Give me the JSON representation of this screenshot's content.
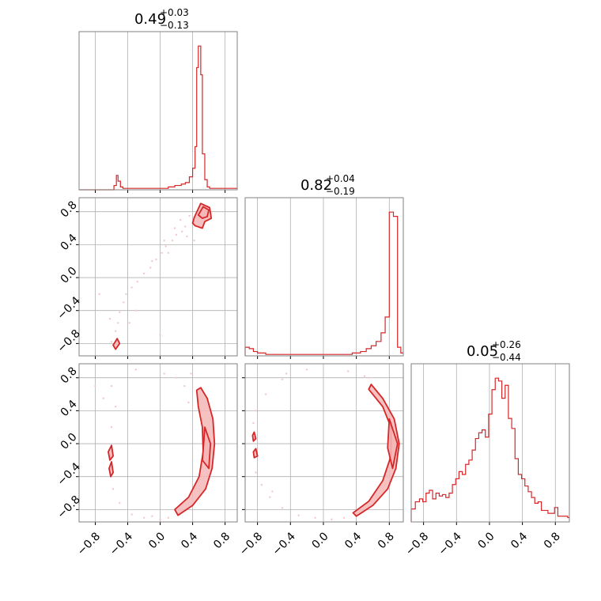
{
  "colors": {
    "series": "#d62728",
    "fill": "#f4b6b6",
    "grid": "#b0b0b0",
    "axes": "#808080",
    "scatter": "#f2c9c9"
  },
  "chart_data": [
    {
      "type": "histogram",
      "panel": "1,1",
      "title": {
        "median": "0.49",
        "plus": "+0.03",
        "minus": "−0.13"
      },
      "x_range": [
        -1,
        0.95
      ],
      "x_grid": [
        -0.8,
        -0.4,
        0.0,
        0.4,
        0.8
      ],
      "y_ticks_labeled": false,
      "bins": [
        {
          "x": -1.0,
          "count": 0
        },
        {
          "x": -0.86,
          "count": 0
        },
        {
          "x": -0.6,
          "count": 0
        },
        {
          "x": -0.57,
          "count": 3
        },
        {
          "x": -0.54,
          "count": 10
        },
        {
          "x": -0.52,
          "count": 6
        },
        {
          "x": -0.49,
          "count": 2
        },
        {
          "x": -0.46,
          "count": 1
        },
        {
          "x": -0.42,
          "count": 1
        },
        {
          "x": -0.3,
          "count": 1
        },
        {
          "x": -0.1,
          "count": 1
        },
        {
          "x": 0.1,
          "count": 2
        },
        {
          "x": 0.18,
          "count": 3
        },
        {
          "x": 0.26,
          "count": 4
        },
        {
          "x": 0.31,
          "count": 5
        },
        {
          "x": 0.36,
          "count": 9
        },
        {
          "x": 0.4,
          "count": 15
        },
        {
          "x": 0.43,
          "count": 30
        },
        {
          "x": 0.45,
          "count": 85
        },
        {
          "x": 0.47,
          "count": 100
        },
        {
          "x": 0.5,
          "count": 80
        },
        {
          "x": 0.52,
          "count": 25
        },
        {
          "x": 0.55,
          "count": 7
        },
        {
          "x": 0.58,
          "count": 2
        },
        {
          "x": 0.61,
          "count": 1
        },
        {
          "x": 0.95,
          "count": 1
        }
      ]
    },
    {
      "type": "histogram",
      "panel": "2,2",
      "title": {
        "median": "0.82",
        "plus": "+0.04",
        "minus": "−0.19"
      },
      "x_range": [
        -0.95,
        0.97
      ],
      "x_grid": [
        -0.8,
        -0.4,
        0.0,
        0.4,
        0.8
      ],
      "y_ticks_labeled": false,
      "bins": [
        {
          "x": -0.95,
          "count": 6
        },
        {
          "x": -0.9,
          "count": 5
        },
        {
          "x": -0.85,
          "count": 3
        },
        {
          "x": -0.8,
          "count": 2
        },
        {
          "x": -0.7,
          "count": 1
        },
        {
          "x": -0.55,
          "count": 1
        },
        {
          "x": -0.4,
          "count": 1
        },
        {
          "x": -0.2,
          "count": 1
        },
        {
          "x": 0.0,
          "count": 1
        },
        {
          "x": 0.2,
          "count": 1
        },
        {
          "x": 0.35,
          "count": 2
        },
        {
          "x": 0.45,
          "count": 3
        },
        {
          "x": 0.52,
          "count": 5
        },
        {
          "x": 0.58,
          "count": 7
        },
        {
          "x": 0.64,
          "count": 10
        },
        {
          "x": 0.7,
          "count": 16
        },
        {
          "x": 0.75,
          "count": 27
        },
        {
          "x": 0.8,
          "count": 100
        },
        {
          "x": 0.85,
          "count": 97
        },
        {
          "x": 0.9,
          "count": 6
        },
        {
          "x": 0.94,
          "count": 2
        }
      ]
    },
    {
      "type": "histogram",
      "panel": "3,3",
      "title": {
        "median": "0.05",
        "plus": "+0.26",
        "minus": "−0.44"
      },
      "x_range": [
        -0.95,
        0.97
      ],
      "x_grid": [
        -0.8,
        -0.4,
        0.0,
        0.4,
        0.8
      ],
      "x_tick_labels": [
        "−0.8",
        "−0.4",
        "0.0",
        "0.4",
        "0.8"
      ],
      "y_ticks_labeled": false,
      "bins": [
        {
          "x": -0.95,
          "count": 9
        },
        {
          "x": -0.9,
          "count": 14
        },
        {
          "x": -0.85,
          "count": 16
        },
        {
          "x": -0.81,
          "count": 14
        },
        {
          "x": -0.77,
          "count": 20
        },
        {
          "x": -0.73,
          "count": 22
        },
        {
          "x": -0.69,
          "count": 16
        },
        {
          "x": -0.65,
          "count": 20
        },
        {
          "x": -0.61,
          "count": 18
        },
        {
          "x": -0.57,
          "count": 19
        },
        {
          "x": -0.53,
          "count": 17
        },
        {
          "x": -0.49,
          "count": 20
        },
        {
          "x": -0.45,
          "count": 26
        },
        {
          "x": -0.41,
          "count": 30
        },
        {
          "x": -0.37,
          "count": 35
        },
        {
          "x": -0.33,
          "count": 33
        },
        {
          "x": -0.29,
          "count": 40
        },
        {
          "x": -0.25,
          "count": 43
        },
        {
          "x": -0.21,
          "count": 50
        },
        {
          "x": -0.17,
          "count": 58
        },
        {
          "x": -0.13,
          "count": 62
        },
        {
          "x": -0.09,
          "count": 64
        },
        {
          "x": -0.05,
          "count": 59
        },
        {
          "x": -0.01,
          "count": 75
        },
        {
          "x": 0.03,
          "count": 92
        },
        {
          "x": 0.07,
          "count": 100
        },
        {
          "x": 0.11,
          "count": 98
        },
        {
          "x": 0.15,
          "count": 86
        },
        {
          "x": 0.19,
          "count": 95
        },
        {
          "x": 0.23,
          "count": 72
        },
        {
          "x": 0.27,
          "count": 65
        },
        {
          "x": 0.31,
          "count": 44
        },
        {
          "x": 0.35,
          "count": 33
        },
        {
          "x": 0.39,
          "count": 30
        },
        {
          "x": 0.43,
          "count": 25
        },
        {
          "x": 0.47,
          "count": 21
        },
        {
          "x": 0.51,
          "count": 17
        },
        {
          "x": 0.55,
          "count": 13
        },
        {
          "x": 0.59,
          "count": 14
        },
        {
          "x": 0.63,
          "count": 8
        },
        {
          "x": 0.67,
          "count": 8
        },
        {
          "x": 0.71,
          "count": 6
        },
        {
          "x": 0.75,
          "count": 6
        },
        {
          "x": 0.79,
          "count": 10
        },
        {
          "x": 0.83,
          "count": 4
        },
        {
          "x": 0.87,
          "count": 4
        },
        {
          "x": 0.91,
          "count": 4
        },
        {
          "x": 0.95,
          "count": 3
        }
      ]
    },
    {
      "type": "contour",
      "panel": "2,1",
      "x_range": [
        -1,
        0.95
      ],
      "y_range": [
        -0.95,
        0.97
      ],
      "x_grid": [
        -0.8,
        -0.4,
        0.0,
        0.4,
        0.8
      ],
      "y_ticks": [
        -0.8,
        -0.4,
        0.0,
        0.4,
        0.8
      ],
      "y_tick_labels": [
        "−0.8",
        "−0.4",
        "0.0",
        "0.4",
        "0.8"
      ],
      "regions": [
        {
          "points": [
            [
              0.42,
              0.73
            ],
            [
              0.5,
              0.9
            ],
            [
              0.61,
              0.85
            ],
            [
              0.63,
              0.72
            ],
            [
              0.55,
              0.68
            ],
            [
              0.52,
              0.6
            ],
            [
              0.43,
              0.63
            ],
            [
              0.4,
              0.66
            ]
          ]
        },
        {
          "points": [
            [
              0.47,
              0.76
            ],
            [
              0.53,
              0.86
            ],
            [
              0.6,
              0.82
            ],
            [
              0.58,
              0.74
            ],
            [
              0.52,
              0.72
            ]
          ]
        },
        {
          "points": [
            [
              -0.58,
              -0.82
            ],
            [
              -0.53,
              -0.74
            ],
            [
              -0.5,
              -0.8
            ],
            [
              -0.55,
              -0.87
            ]
          ]
        }
      ],
      "scatter": [
        [
          0.31,
          0.62
        ],
        [
          0.27,
          0.56
        ],
        [
          0.2,
          0.52
        ],
        [
          0.15,
          0.45
        ],
        [
          0.07,
          0.38
        ],
        [
          0.02,
          0.3
        ],
        [
          -0.05,
          0.22
        ],
        [
          -0.12,
          0.12
        ],
        [
          -0.2,
          0.05
        ],
        [
          -0.28,
          -0.05
        ],
        [
          -0.35,
          -0.12
        ],
        [
          -0.42,
          -0.2
        ],
        [
          -0.45,
          -0.3
        ],
        [
          -0.5,
          -0.42
        ],
        [
          -0.52,
          -0.55
        ],
        [
          -0.55,
          -0.65
        ],
        [
          -0.6,
          -0.78
        ],
        [
          0.36,
          0.75
        ],
        [
          0.33,
          0.5
        ],
        [
          0.1,
          0.3
        ],
        [
          -0.3,
          -0.4
        ],
        [
          -0.1,
          0.2
        ],
        [
          0.25,
          0.7
        ],
        [
          0.05,
          0.45
        ],
        [
          -0.38,
          -0.55
        ],
        [
          -0.75,
          -0.2
        ],
        [
          0.0,
          -0.7
        ],
        [
          0.42,
          0.45
        ],
        [
          -0.62,
          -0.5
        ],
        [
          0.18,
          0.6
        ]
      ]
    },
    {
      "type": "contour",
      "panel": "3,1",
      "x_range": [
        -1,
        0.95
      ],
      "y_range": [
        -0.95,
        0.97
      ],
      "x_grid": [
        -0.8,
        -0.4,
        0.0,
        0.4,
        0.8
      ],
      "x_tick_labels": [
        "−0.8",
        "−0.4",
        "0.0",
        "0.4",
        "0.8"
      ],
      "y_ticks": [
        -0.8,
        -0.4,
        0.0,
        0.4,
        0.8
      ],
      "y_tick_labels": [
        "−0.8",
        "−0.4",
        "0.0",
        "0.4",
        "0.8"
      ],
      "regions": [
        {
          "points": [
            [
              0.5,
              0.68
            ],
            [
              0.58,
              0.55
            ],
            [
              0.65,
              0.3
            ],
            [
              0.67,
              0.0
            ],
            [
              0.64,
              -0.3
            ],
            [
              0.56,
              -0.55
            ],
            [
              0.4,
              -0.75
            ],
            [
              0.22,
              -0.87
            ],
            [
              0.18,
              -0.8
            ],
            [
              0.35,
              -0.65
            ],
            [
              0.48,
              -0.4
            ],
            [
              0.53,
              -0.1
            ],
            [
              0.52,
              0.2
            ],
            [
              0.47,
              0.45
            ],
            [
              0.45,
              0.65
            ]
          ]
        },
        {
          "points": [
            [
              0.55,
              0.2
            ],
            [
              0.62,
              0.0
            ],
            [
              0.6,
              -0.3
            ],
            [
              0.52,
              -0.2
            ],
            [
              0.54,
              0.05
            ]
          ]
        },
        {
          "points": [
            [
              -0.64,
              -0.1
            ],
            [
              -0.6,
              -0.02
            ],
            [
              -0.58,
              -0.15
            ],
            [
              -0.62,
              -0.2
            ]
          ]
        },
        {
          "points": [
            [
              -0.63,
              -0.3
            ],
            [
              -0.6,
              -0.22
            ],
            [
              -0.58,
              -0.35
            ],
            [
              -0.61,
              -0.4
            ]
          ]
        }
      ],
      "scatter": [
        [
          0.38,
          0.85
        ],
        [
          -0.6,
          0.7
        ],
        [
          -0.55,
          0.45
        ],
        [
          -0.6,
          0.2
        ],
        [
          -0.58,
          -0.55
        ],
        [
          -0.5,
          -0.72
        ],
        [
          -0.35,
          -0.86
        ],
        [
          -0.2,
          -0.9
        ],
        [
          0.0,
          -0.92
        ],
        [
          -0.8,
          0.7
        ],
        [
          -0.3,
          0.9
        ],
        [
          0.05,
          0.85
        ],
        [
          0.2,
          0.8
        ],
        [
          0.3,
          0.7
        ],
        [
          0.35,
          0.5
        ],
        [
          -0.1,
          -0.88
        ],
        [
          0.1,
          -0.9
        ],
        [
          -0.7,
          0.55
        ]
      ]
    },
    {
      "type": "contour",
      "panel": "3,2",
      "x_range": [
        -0.95,
        0.97
      ],
      "y_range": [
        -0.95,
        0.97
      ],
      "x_grid": [
        -0.8,
        -0.4,
        0.0,
        0.4,
        0.8
      ],
      "x_tick_labels": [
        "−0.8",
        "−0.4",
        "0.0",
        "0.4",
        "0.8"
      ],
      "y_ticks": [
        -0.8,
        -0.4,
        0.0,
        0.4,
        0.8
      ],
      "regions": [
        {
          "points": [
            [
              0.58,
              0.72
            ],
            [
              0.72,
              0.55
            ],
            [
              0.86,
              0.3
            ],
            [
              0.92,
              0.0
            ],
            [
              0.88,
              -0.3
            ],
            [
              0.78,
              -0.55
            ],
            [
              0.6,
              -0.75
            ],
            [
              0.4,
              -0.88
            ],
            [
              0.36,
              -0.84
            ],
            [
              0.55,
              -0.7
            ],
            [
              0.72,
              -0.45
            ],
            [
              0.82,
              -0.15
            ],
            [
              0.82,
              0.2
            ],
            [
              0.72,
              0.45
            ],
            [
              0.55,
              0.66
            ]
          ]
        },
        {
          "points": [
            [
              0.8,
              0.3
            ],
            [
              0.9,
              0.0
            ],
            [
              0.84,
              -0.3
            ],
            [
              0.78,
              -0.05
            ]
          ]
        },
        {
          "points": [
            [
              -0.86,
              0.1
            ],
            [
              -0.84,
              0.14
            ],
            [
              -0.82,
              0.06
            ],
            [
              -0.85,
              0.03
            ]
          ]
        },
        {
          "points": [
            [
              -0.85,
              -0.1
            ],
            [
              -0.82,
              -0.06
            ],
            [
              -0.8,
              -0.15
            ],
            [
              -0.84,
              -0.17
            ]
          ]
        }
      ],
      "scatter": [
        [
          0.5,
          0.82
        ],
        [
          0.55,
          0.8
        ],
        [
          0.3,
          0.88
        ],
        [
          -0.2,
          0.9
        ],
        [
          -0.5,
          0.78
        ],
        [
          -0.7,
          0.6
        ],
        [
          -0.82,
          0.4
        ],
        [
          -0.85,
          0.25
        ],
        [
          -0.82,
          -0.35
        ],
        [
          -0.75,
          -0.5
        ],
        [
          -0.65,
          -0.65
        ],
        [
          -0.5,
          -0.78
        ],
        [
          -0.3,
          -0.87
        ],
        [
          -0.1,
          -0.9
        ],
        [
          0.1,
          -0.92
        ],
        [
          0.25,
          -0.9
        ],
        [
          -0.62,
          -0.58
        ],
        [
          -0.45,
          0.85
        ]
      ]
    }
  ]
}
